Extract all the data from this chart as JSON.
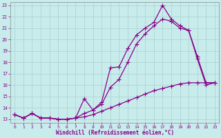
{
  "xlabel": "Windchill (Refroidissement éolien,°C)",
  "background_color": "#c8ecec",
  "grid_color": "#aed4d4",
  "line_color": "#880088",
  "xlim": [
    -0.5,
    23.5
  ],
  "ylim": [
    12.7,
    23.3
  ],
  "xticks": [
    0,
    1,
    2,
    3,
    4,
    5,
    6,
    7,
    8,
    9,
    10,
    11,
    12,
    13,
    14,
    15,
    16,
    17,
    18,
    19,
    20,
    21,
    22,
    23
  ],
  "yticks": [
    13,
    14,
    15,
    16,
    17,
    18,
    19,
    20,
    21,
    22,
    23
  ],
  "series1_x": [
    0,
    1,
    2,
    3,
    4,
    5,
    6,
    7,
    8,
    9,
    10,
    11,
    12,
    13,
    14,
    15,
    16,
    17,
    18,
    19,
    20,
    21,
    22,
    23
  ],
  "series1_y": [
    13.4,
    13.1,
    13.5,
    13.1,
    13.1,
    13.0,
    13.0,
    13.1,
    14.8,
    13.8,
    14.5,
    17.5,
    17.6,
    19.2,
    20.4,
    21.0,
    21.5,
    23.0,
    21.8,
    21.2,
    20.8,
    18.5,
    16.2,
    16.2
  ],
  "series2_x": [
    0,
    1,
    2,
    3,
    4,
    5,
    6,
    7,
    8,
    9,
    10,
    11,
    12,
    13,
    14,
    15,
    16,
    17,
    18,
    19,
    20,
    21,
    22,
    23
  ],
  "series2_y": [
    13.4,
    13.1,
    13.5,
    13.1,
    13.1,
    13.0,
    13.0,
    13.1,
    13.5,
    13.8,
    14.3,
    15.8,
    16.5,
    18.0,
    19.6,
    20.5,
    21.2,
    21.8,
    21.6,
    21.0,
    20.8,
    18.3,
    16.0,
    16.2
  ],
  "series3_x": [
    0,
    1,
    2,
    3,
    4,
    5,
    6,
    7,
    8,
    9,
    10,
    11,
    12,
    13,
    14,
    15,
    16,
    17,
    18,
    19,
    20,
    21,
    22,
    23
  ],
  "series3_y": [
    13.4,
    13.1,
    13.5,
    13.1,
    13.1,
    13.0,
    13.0,
    13.1,
    13.2,
    13.4,
    13.7,
    14.0,
    14.3,
    14.6,
    14.9,
    15.2,
    15.5,
    15.7,
    15.9,
    16.1,
    16.2,
    16.2,
    16.2,
    16.2
  ]
}
